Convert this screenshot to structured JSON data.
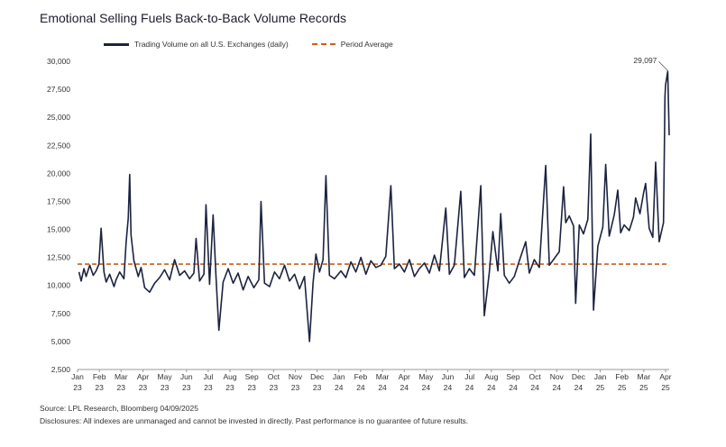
{
  "title": "Emotional Selling Fuels Back-to-Back Volume Records",
  "source": "Source: LPL Research, Bloomberg 04/09/2025",
  "disclosure": "Disclosures: All indexes are unmanaged and cannot be invested in directly. Past performance is no guarantee of future results.",
  "colors": {
    "series": "#1c2340",
    "average": "#c8601a",
    "axis": "#999999"
  },
  "chart_data": {
    "type": "line",
    "title": "Emotional Selling Fuels Back-to-Back Volume Records",
    "legend_placement": "top",
    "grid": false,
    "ylim": [
      2500,
      30000
    ],
    "y_ticks": [
      "2,500",
      "5,000",
      "7,500",
      "10,000",
      "12,500",
      "15,000",
      "17,500",
      "20,000",
      "22,500",
      "25,000",
      "27,500",
      "30,000"
    ],
    "x_ticks": [
      [
        "Jan",
        "23"
      ],
      [
        "Feb",
        "23"
      ],
      [
        "Mar",
        "23"
      ],
      [
        "Apr",
        "23"
      ],
      [
        "May",
        "23"
      ],
      [
        "Jun",
        "23"
      ],
      [
        "Jul",
        "23"
      ],
      [
        "Aug",
        "23"
      ],
      [
        "Sep",
        "23"
      ],
      [
        "Oct",
        "23"
      ],
      [
        "Nov",
        "23"
      ],
      [
        "Dec",
        "23"
      ],
      [
        "Jan",
        "24"
      ],
      [
        "Feb",
        "24"
      ],
      [
        "Mar",
        "24"
      ],
      [
        "Apr",
        "24"
      ],
      [
        "May",
        "24"
      ],
      [
        "Jun",
        "24"
      ],
      [
        "Jul",
        "24"
      ],
      [
        "Aug",
        "24"
      ],
      [
        "Sep",
        "24"
      ],
      [
        "Oct",
        "24"
      ],
      [
        "Nov",
        "24"
      ],
      [
        "Dec",
        "24"
      ],
      [
        "Jan",
        "25"
      ],
      [
        "Feb",
        "25"
      ],
      [
        "Mar",
        "25"
      ],
      [
        "Apr",
        "25"
      ]
    ],
    "x_domain": [
      "2023-01-01",
      "2025-04-09"
    ],
    "series": [
      {
        "name": "Trading Volume on all U.S. Exchanges (daily)",
        "points": [
          [
            "2023-01-03",
            11200
          ],
          [
            "2023-01-06",
            10400
          ],
          [
            "2023-01-10",
            11500
          ],
          [
            "2023-01-13",
            10800
          ],
          [
            "2023-01-18",
            11800
          ],
          [
            "2023-01-23",
            10900
          ],
          [
            "2023-01-27",
            11300
          ],
          [
            "2023-01-31",
            11900
          ],
          [
            "2023-02-03",
            15100
          ],
          [
            "2023-02-07",
            11200
          ],
          [
            "2023-02-10",
            10300
          ],
          [
            "2023-02-15",
            11000
          ],
          [
            "2023-02-21",
            9900
          ],
          [
            "2023-02-24",
            10500
          ],
          [
            "2023-03-01",
            11200
          ],
          [
            "2023-03-07",
            10600
          ],
          [
            "2023-03-10",
            13800
          ],
          [
            "2023-03-13",
            16000
          ],
          [
            "2023-03-15",
            19900
          ],
          [
            "2023-03-17",
            14500
          ],
          [
            "2023-03-21",
            12200
          ],
          [
            "2023-03-27",
            10800
          ],
          [
            "2023-03-31",
            11600
          ],
          [
            "2023-04-05",
            9800
          ],
          [
            "2023-04-12",
            9400
          ],
          [
            "2023-04-19",
            10200
          ],
          [
            "2023-04-26",
            10700
          ],
          [
            "2023-05-03",
            11400
          ],
          [
            "2023-05-10",
            10500
          ],
          [
            "2023-05-17",
            12300
          ],
          [
            "2023-05-24",
            10900
          ],
          [
            "2023-05-31",
            11300
          ],
          [
            "2023-06-07",
            10600
          ],
          [
            "2023-06-13",
            11100
          ],
          [
            "2023-06-16",
            14200
          ],
          [
            "2023-06-21",
            10400
          ],
          [
            "2023-06-27",
            11000
          ],
          [
            "2023-06-30",
            17200
          ],
          [
            "2023-07-05",
            10100
          ],
          [
            "2023-07-10",
            16300
          ],
          [
            "2023-07-14",
            10800
          ],
          [
            "2023-07-18",
            6000
          ],
          [
            "2023-07-24",
            10300
          ],
          [
            "2023-07-31",
            11500
          ],
          [
            "2023-08-07",
            10200
          ],
          [
            "2023-08-14",
            11100
          ],
          [
            "2023-08-21",
            9600
          ],
          [
            "2023-08-28",
            10800
          ],
          [
            "2023-09-05",
            9800
          ],
          [
            "2023-09-12",
            10500
          ],
          [
            "2023-09-15",
            17500
          ],
          [
            "2023-09-20",
            10200
          ],
          [
            "2023-09-27",
            9900
          ],
          [
            "2023-10-04",
            11200
          ],
          [
            "2023-10-11",
            10600
          ],
          [
            "2023-10-18",
            11800
          ],
          [
            "2023-10-25",
            10400
          ],
          [
            "2023-11-01",
            11000
          ],
          [
            "2023-11-08",
            9700
          ],
          [
            "2023-11-15",
            10800
          ],
          [
            "2023-11-22",
            5000
          ],
          [
            "2023-11-27",
            10200
          ],
          [
            "2023-12-01",
            12800
          ],
          [
            "2023-12-06",
            11200
          ],
          [
            "2023-12-11",
            12300
          ],
          [
            "2023-12-15",
            19800
          ],
          [
            "2023-12-20",
            10900
          ],
          [
            "2023-12-27",
            10600
          ],
          [
            "2024-01-05",
            11300
          ],
          [
            "2024-01-12",
            10700
          ],
          [
            "2024-01-19",
            12100
          ],
          [
            "2024-01-26",
            11200
          ],
          [
            "2024-02-02",
            12500
          ],
          [
            "2024-02-09",
            11000
          ],
          [
            "2024-02-16",
            12200
          ],
          [
            "2024-02-23",
            11600
          ],
          [
            "2024-03-01",
            11800
          ],
          [
            "2024-03-08",
            12600
          ],
          [
            "2024-03-15",
            18900
          ],
          [
            "2024-03-20",
            11500
          ],
          [
            "2024-03-27",
            11900
          ],
          [
            "2024-04-03",
            11200
          ],
          [
            "2024-04-10",
            12300
          ],
          [
            "2024-04-17",
            10800
          ],
          [
            "2024-04-24",
            11500
          ],
          [
            "2024-05-01",
            12000
          ],
          [
            "2024-05-08",
            11100
          ],
          [
            "2024-05-15",
            12700
          ],
          [
            "2024-05-22",
            11300
          ],
          [
            "2024-05-31",
            16900
          ],
          [
            "2024-06-05",
            11000
          ],
          [
            "2024-06-12",
            11800
          ],
          [
            "2024-06-21",
            18400
          ],
          [
            "2024-06-26",
            10700
          ],
          [
            "2024-07-03",
            11500
          ],
          [
            "2024-07-10",
            10900
          ],
          [
            "2024-07-19",
            18900
          ],
          [
            "2024-07-24",
            7300
          ],
          [
            "2024-07-31",
            11200
          ],
          [
            "2024-08-05",
            14800
          ],
          [
            "2024-08-12",
            11300
          ],
          [
            "2024-08-16",
            16400
          ],
          [
            "2024-08-21",
            10900
          ],
          [
            "2024-08-28",
            10200
          ],
          [
            "2024-09-04",
            10800
          ],
          [
            "2024-09-10",
            12000
          ],
          [
            "2024-09-20",
            13900
          ],
          [
            "2024-09-25",
            11100
          ],
          [
            "2024-10-02",
            12300
          ],
          [
            "2024-10-09",
            11600
          ],
          [
            "2024-10-18",
            20700
          ],
          [
            "2024-10-23",
            11800
          ],
          [
            "2024-10-30",
            12400
          ],
          [
            "2024-11-06",
            13000
          ],
          [
            "2024-11-12",
            18800
          ],
          [
            "2024-11-15",
            15600
          ],
          [
            "2024-11-20",
            16200
          ],
          [
            "2024-11-26",
            15300
          ],
          [
            "2024-11-29",
            8400
          ],
          [
            "2024-12-04",
            15400
          ],
          [
            "2024-12-10",
            14600
          ],
          [
            "2024-12-16",
            15900
          ],
          [
            "2024-12-20",
            23500
          ],
          [
            "2024-12-24",
            7800
          ],
          [
            "2024-12-30",
            13500
          ],
          [
            "2025-01-06",
            15200
          ],
          [
            "2025-01-10",
            20800
          ],
          [
            "2025-01-15",
            14400
          ],
          [
            "2025-01-22",
            16300
          ],
          [
            "2025-01-27",
            18500
          ],
          [
            "2025-01-31",
            14700
          ],
          [
            "2025-02-05",
            15400
          ],
          [
            "2025-02-12",
            14900
          ],
          [
            "2025-02-18",
            16100
          ],
          [
            "2025-02-21",
            17800
          ],
          [
            "2025-02-27",
            16400
          ],
          [
            "2025-03-04",
            18200
          ],
          [
            "2025-03-07",
            19100
          ],
          [
            "2025-03-12",
            15100
          ],
          [
            "2025-03-17",
            14300
          ],
          [
            "2025-03-21",
            21000
          ],
          [
            "2025-03-26",
            13900
          ],
          [
            "2025-04-01",
            15600
          ],
          [
            "2025-04-03",
            26800
          ],
          [
            "2025-04-04",
            27900
          ],
          [
            "2025-04-07",
            29097
          ],
          [
            "2025-04-09",
            23400
          ]
        ]
      },
      {
        "name": "Period Average",
        "value": 11900,
        "style": "dashed"
      }
    ],
    "annotations": [
      {
        "text": "29,097",
        "x": "2025-04-07",
        "y": 29097
      }
    ]
  }
}
